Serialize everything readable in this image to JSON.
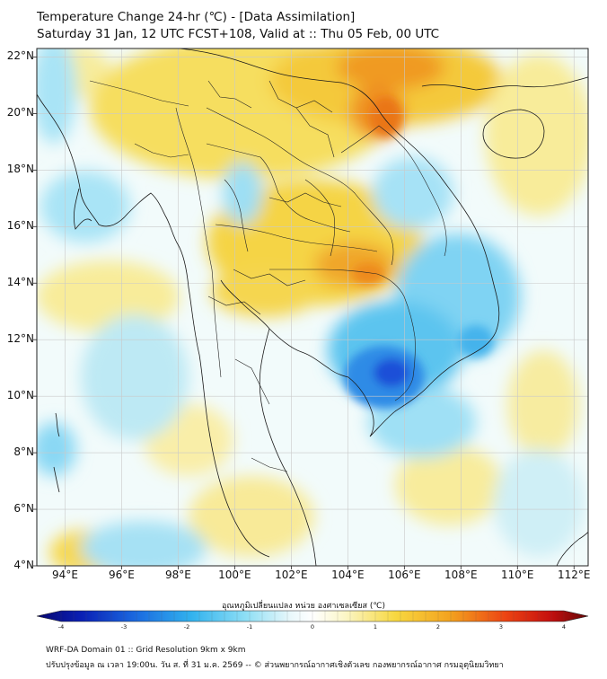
{
  "title": {
    "line1": "Temperature Change 24-hr (℃) - [Data Assimilation]",
    "line2": "Saturday 31 Jan, 12 UTC FCST+108, Valid at :: Thu 05 Feb, 00 UTC"
  },
  "map": {
    "lat_labels": [
      "22°N",
      "20°N",
      "18°N",
      "16°N",
      "14°N",
      "12°N",
      "10°N",
      "8°N",
      "6°N",
      "4°N"
    ],
    "lon_labels": [
      "94°E",
      "96°E",
      "98°E",
      "100°E",
      "102°E",
      "104°E",
      "106°E",
      "108°E",
      "110°E",
      "112°E"
    ],
    "lat_range": [
      4,
      22.3
    ],
    "lon_range": [
      93,
      112.5
    ],
    "colors": {
      "cold": "#1e4fd8",
      "cool": "#3fc4ee",
      "neutral": "#f2fbfb",
      "warm": "#f6d640",
      "hot": "#f08a1a"
    }
  },
  "colorbar": {
    "title": "อุณหภูมิเปลี่ยนแปลง หน่วย องศาเซลเซียส (℃)",
    "ticks": [
      "-4",
      "-3",
      "-2",
      "-1",
      "0",
      "1",
      "2",
      "3",
      "4"
    ],
    "range": [
      -4,
      4
    ]
  },
  "footer": {
    "line1": "WRF-DA Domain 01 :: Grid Resolution 9km x 9km",
    "line2": "ปรับปรุงข้อมูล ณ เวลา 19:00น. วัน ส. ที่ 31 ม.ค. 2569 -- © ส่วนพยากรณ์อากาศเชิงตัวเลข กองพยากรณ์อากาศ กรมอุตุนิยมวิทยา"
  }
}
